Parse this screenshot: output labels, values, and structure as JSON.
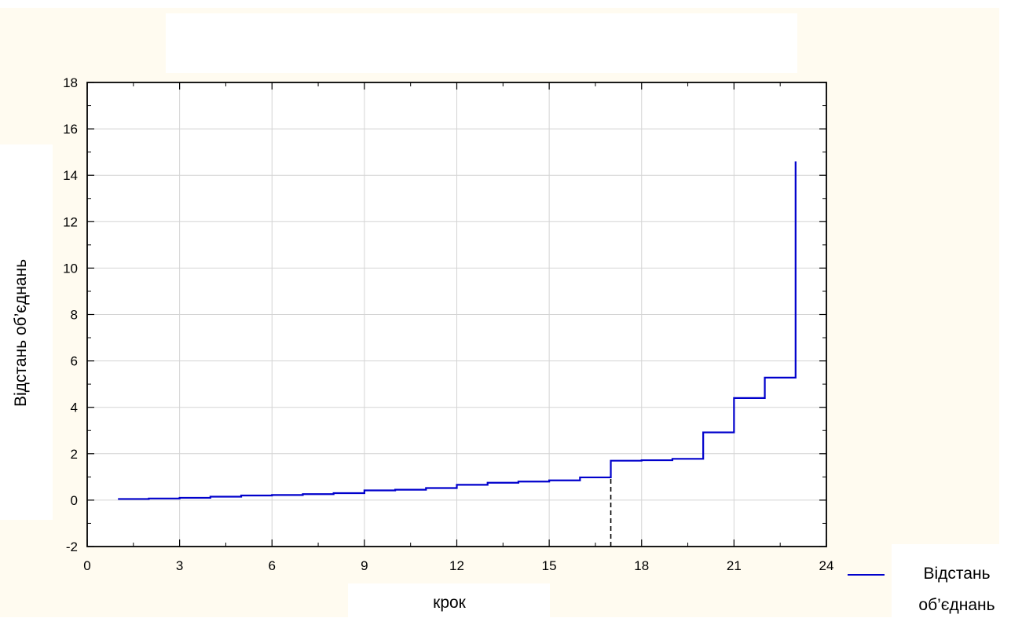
{
  "chart_data": {
    "type": "line",
    "title": "",
    "xlabel": "крок",
    "ylabel": "Відстань об’єднань",
    "xlim": [
      0,
      24
    ],
    "ylim": [
      -2,
      18
    ],
    "x_ticks": [
      0,
      3,
      6,
      9,
      12,
      15,
      18,
      21,
      24
    ],
    "y_ticks": [
      -2,
      0,
      2,
      4,
      6,
      8,
      10,
      12,
      14,
      16,
      18
    ],
    "grid": true,
    "legend_position": "bottom-right",
    "legend_lines": [
      "Відстань",
      "об’єднань"
    ],
    "series": [
      {
        "name": "Відстань об’єднань",
        "color": "#0000cc",
        "step": "post",
        "x": [
          1,
          2,
          3,
          4,
          5,
          6,
          7,
          8,
          9,
          10,
          11,
          12,
          13,
          14,
          15,
          16,
          17,
          18,
          19,
          20,
          21,
          22,
          23
        ],
        "values": [
          0.05,
          0.07,
          0.1,
          0.15,
          0.2,
          0.22,
          0.26,
          0.3,
          0.42,
          0.45,
          0.52,
          0.66,
          0.75,
          0.8,
          0.85,
          0.98,
          1.7,
          1.72,
          1.78,
          2.92,
          4.4,
          5.28,
          14.6
        ]
      }
    ],
    "annotations": [
      {
        "type": "vertical-dashed-line",
        "x": 17,
        "y_from": -2,
        "y_to": 1.7,
        "color": "#000000"
      }
    ]
  }
}
